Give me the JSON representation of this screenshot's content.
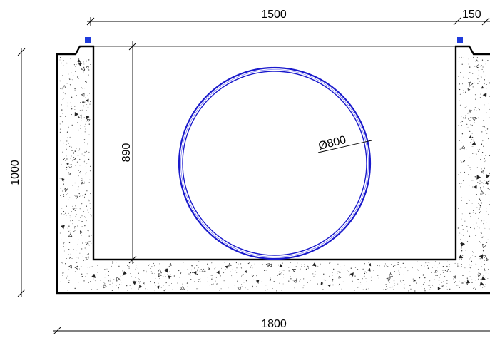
{
  "drawing": {
    "dimensions": {
      "inner_width": "1500",
      "wall_thickness": "150",
      "inner_depth": "890",
      "pipe_diameter": "Ø800",
      "total_height": "1000",
      "total_width": "1800"
    }
  },
  "colors": {
    "line": "#000000",
    "pipe": "#1a1acc",
    "marker": "#1f3bdc",
    "concrete_fill": "#ffffff"
  }
}
